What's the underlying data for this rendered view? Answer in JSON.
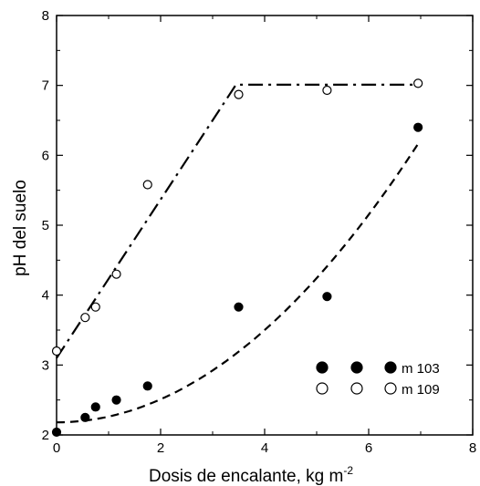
{
  "chart_data": {
    "type": "scatter",
    "xlabel": "Dosis de encalante, kg m",
    "xlabel_superscript": "-2",
    "ylabel": "pH del suelo",
    "xlim": [
      0,
      8
    ],
    "ylim": [
      2,
      8
    ],
    "x_ticks": [
      0,
      2,
      4,
      6,
      8
    ],
    "y_ticks": [
      2,
      3,
      4,
      5,
      6,
      7,
      8
    ],
    "grid": false,
    "legend_position": "bottom-right",
    "series": [
      {
        "name": "m 103",
        "marker": "filled-circle",
        "x": [
          0,
          0.55,
          0.75,
          1.15,
          1.75,
          3.5,
          5.2,
          6.95
        ],
        "y": [
          2.04,
          2.25,
          2.4,
          2.5,
          2.7,
          3.83,
          3.98,
          6.4
        ]
      },
      {
        "name": "m 109",
        "marker": "open-circle",
        "x": [
          0,
          0.55,
          0.75,
          1.15,
          1.75,
          3.5,
          5.2,
          6.95
        ],
        "y": [
          3.2,
          3.68,
          3.83,
          4.3,
          5.58,
          6.87,
          6.93,
          7.03
        ]
      }
    ],
    "fit_lines": [
      {
        "series": "m 103",
        "style": "dashed",
        "x": [
          0,
          0.5,
          1,
          1.5,
          2,
          2.5,
          3,
          3.5,
          4,
          4.5,
          5,
          5.5,
          6,
          6.5,
          6.95
        ],
        "y": [
          2.18,
          2.22,
          2.34,
          2.52,
          2.74,
          3.0,
          3.29,
          3.62,
          3.98,
          4.37,
          4.79,
          5.23,
          5.7,
          6.2,
          6.15
        ]
      },
      {
        "series": "m 109",
        "style": "dash-dot",
        "x": [
          0,
          3.45,
          6.95
        ],
        "y": [
          3.1,
          7.01,
          7.01
        ]
      }
    ]
  },
  "legend": {
    "m103_label": "m 103",
    "m109_label": "m 109"
  }
}
